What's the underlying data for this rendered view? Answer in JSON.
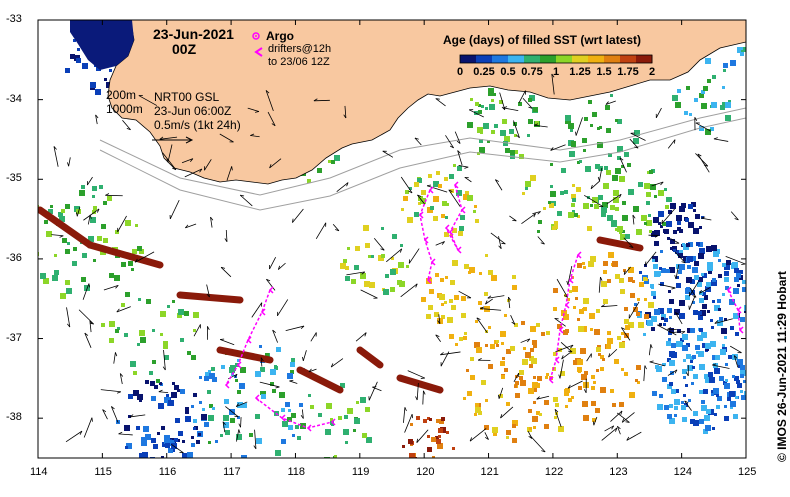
{
  "map": {
    "date_title": "23-Jun-2021",
    "time_title": "00Z",
    "argo_legend": "Argo",
    "drifters_legend_line1": "drifters@12h",
    "drifters_legend_line2": "to 23/06 12Z",
    "isobath_200": "200m",
    "isobath_1000": "1000m",
    "product_line1": "NRT00 GSL",
    "product_line2": "23-Jun 06:00Z",
    "scale_label": "0.5m/s (1kt 24h)",
    "credit": "© IMOS 26-Jun-2021 11:29 Hobart",
    "colors": {
      "land": "#f8c8a0",
      "ocean_blank": "#ffffff",
      "drifter": "#ff00ff",
      "deep_blue": "#0a1a7a",
      "current_arrow": "#000000",
      "isobath": "#a0a0a0"
    },
    "extent": {
      "lon": [
        114,
        125
      ],
      "lat": [
        -38.5,
        -33
      ]
    },
    "lon_ticks": [
      "114",
      "115",
      "116",
      "117",
      "118",
      "119",
      "120",
      "121",
      "122",
      "123",
      "124",
      "125"
    ],
    "lat_ticks": [
      "-33",
      "-34",
      "-35",
      "-36",
      "-37",
      "-38"
    ],
    "colorbar": {
      "title": "Age (days) of filled SST (wrt latest)",
      "tick_labels": [
        "0",
        "0.25",
        "0.5",
        "0.75",
        "1",
        "1.25",
        "1.5",
        "1.75",
        "2"
      ],
      "range": [
        0,
        2
      ],
      "colors": [
        "#08136e",
        "#0a3fb8",
        "#1e78e0",
        "#3cb4f0",
        "#2fb070",
        "#2ca02c",
        "#8cd628",
        "#e0d020",
        "#f0b010",
        "#e08010",
        "#c04010",
        "#8a1a0a"
      ]
    }
  }
}
